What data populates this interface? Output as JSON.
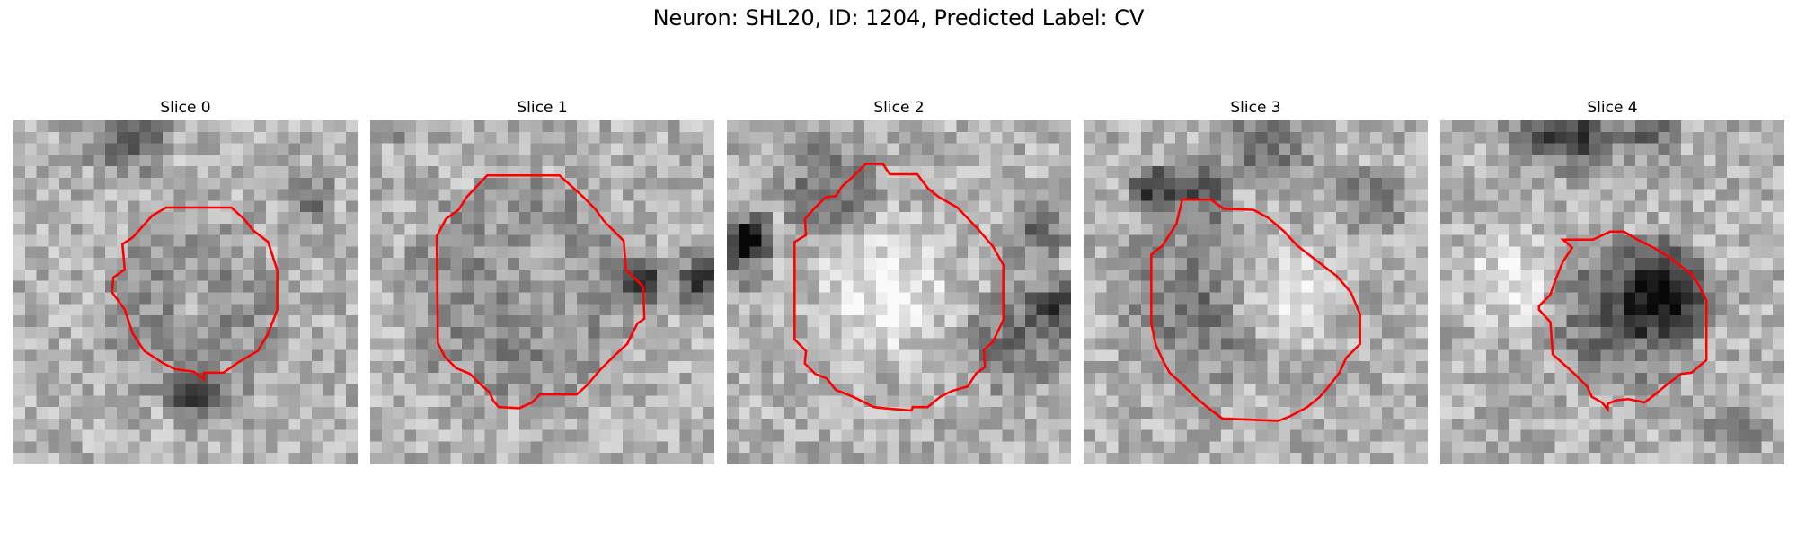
{
  "figure": {
    "suptitle": "Neuron: SHL20, ID: 1204, Predicted Label: CV",
    "contour_color": "#ff0000",
    "colormap": "gray",
    "panels": [
      {
        "title": "Slice 0"
      },
      {
        "title": "Slice 1"
      },
      {
        "title": "Slice 2"
      },
      {
        "title": "Slice 3"
      },
      {
        "title": "Slice 4"
      }
    ]
  }
}
